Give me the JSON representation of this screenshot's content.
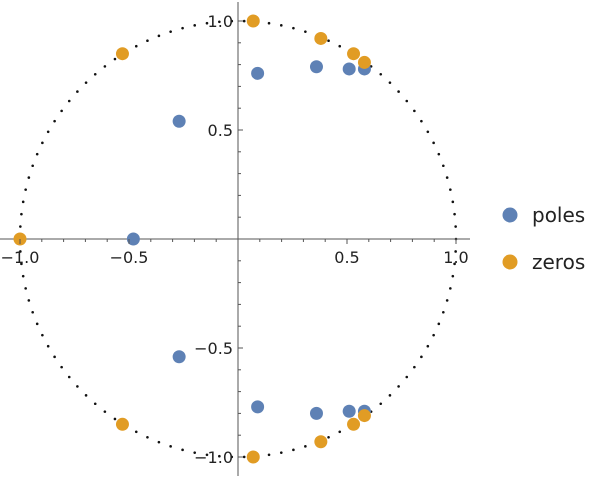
{
  "chart_data": {
    "type": "scatter",
    "title": "",
    "xlabel": "",
    "ylabel": "",
    "xlim": [
      -1.05,
      1.05
    ],
    "ylim": [
      -1.08,
      1.08
    ],
    "x_ticks": [
      {
        "value": -1.0,
        "label": "-1.0"
      },
      {
        "value": -0.5,
        "label": "-0.5"
      },
      {
        "value": 0.5,
        "label": "0.5"
      },
      {
        "value": 1.0,
        "label": "1.0"
      }
    ],
    "y_ticks": [
      {
        "value": 1.0,
        "label": "1.0"
      },
      {
        "value": 0.5,
        "label": "0.5"
      },
      {
        "value": -0.5,
        "label": "-0.5"
      },
      {
        "value": -1.0,
        "label": "-1.0"
      }
    ],
    "unit_circle": true,
    "legend_position": "right",
    "series": [
      {
        "name": "poles",
        "color": "#5e81b5",
        "points": [
          {
            "x": -0.48,
            "y": 0.0
          },
          {
            "x": -0.27,
            "y": 0.54
          },
          {
            "x": -0.27,
            "y": -0.54
          },
          {
            "x": 0.09,
            "y": 0.76
          },
          {
            "x": 0.09,
            "y": -0.77
          },
          {
            "x": 0.36,
            "y": 0.79
          },
          {
            "x": 0.36,
            "y": -0.8
          },
          {
            "x": 0.51,
            "y": 0.78
          },
          {
            "x": 0.51,
            "y": -0.79
          },
          {
            "x": 0.58,
            "y": 0.78
          },
          {
            "x": 0.58,
            "y": -0.79
          }
        ]
      },
      {
        "name": "zeros",
        "color": "#e19c24",
        "points": [
          {
            "x": -1.0,
            "y": 0.0
          },
          {
            "x": -0.53,
            "y": 0.85
          },
          {
            "x": -0.53,
            "y": -0.85
          },
          {
            "x": 0.07,
            "y": 1.0
          },
          {
            "x": 0.07,
            "y": -1.0
          },
          {
            "x": 0.38,
            "y": 0.92
          },
          {
            "x": 0.38,
            "y": -0.93
          },
          {
            "x": 0.53,
            "y": 0.85
          },
          {
            "x": 0.53,
            "y": -0.85
          },
          {
            "x": 0.58,
            "y": 0.81
          },
          {
            "x": 0.58,
            "y": -0.81
          }
        ]
      }
    ]
  }
}
